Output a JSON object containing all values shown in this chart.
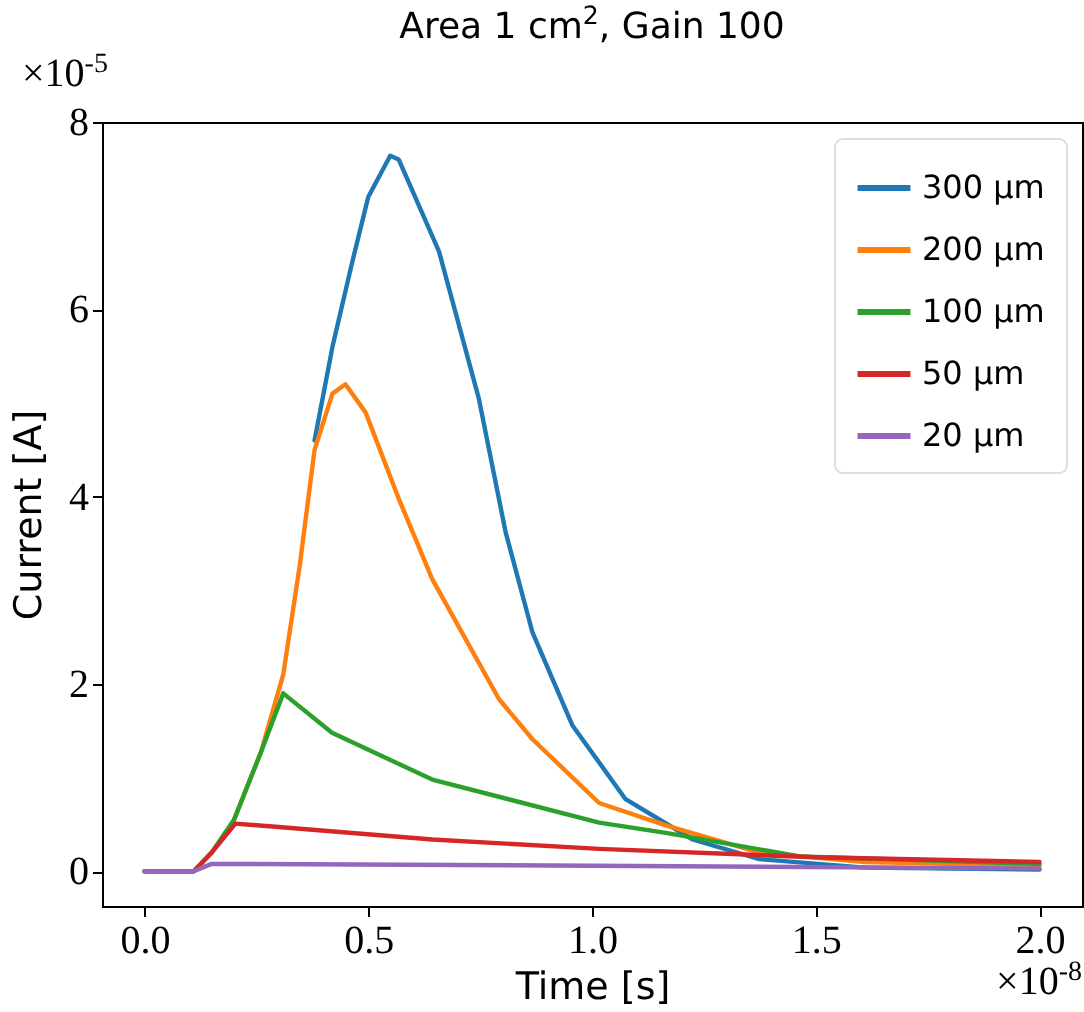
{
  "chart_data": {
    "type": "line",
    "title": "Area 1 cm$^{2}$, Gain 100",
    "xlabel": "Time [s]",
    "ylabel": "Current [A]",
    "annotations": [
      "×10$^{-5}$",
      "×10$^{-8}$"
    ],
    "xlim": [
      -0.095,
      2.095
    ],
    "ylim": [
      -0.37,
      8.0
    ],
    "xticks": [
      {
        "value": 0,
        "label": "0.0"
      },
      {
        "value": 0.5,
        "label": "0.5"
      },
      {
        "value": 1,
        "label": "1.0"
      },
      {
        "value": 1.5,
        "label": "1.5"
      },
      {
        "value": 2,
        "label": "2.0"
      }
    ],
    "yticks": [
      0,
      2,
      4,
      6,
      8
    ],
    "grid": false,
    "legend": "top right",
    "marker": "none",
    "line_style": "solid",
    "series": [
      {
        "name": "300 μm",
        "color": "#1f77b4",
        "x": [
          0.38,
          0.42,
          0.464,
          0.5,
          0.549,
          0.568,
          0.658,
          0.747,
          0.807,
          0.867,
          0.956,
          1.075,
          1.225,
          1.374,
          1.61,
          2.0
        ],
        "values": [
          4.6,
          5.6,
          6.5,
          7.2,
          7.64,
          7.6,
          6.62,
          5.05,
          3.62,
          2.55,
          1.56,
          0.77,
          0.34,
          0.13,
          0.04,
          0.02
        ]
      },
      {
        "name": "200 μm",
        "color": "#ff7f0e",
        "x": [
          0.2,
          0.26,
          0.31,
          0.347,
          0.38,
          0.42,
          0.449,
          0.494,
          0.568,
          0.643,
          0.792,
          0.867,
          1.016,
          1.165,
          1.374,
          1.61,
          2.0
        ],
        "values": [
          0.55,
          1.27,
          2.1,
          3.27,
          4.5,
          5.1,
          5.2,
          4.9,
          3.98,
          3.12,
          1.84,
          1.41,
          0.73,
          0.49,
          0.2,
          0.1,
          0.06
        ]
      },
      {
        "name": "100 μm",
        "color": "#2ca02c",
        "x": [
          0,
          0.11,
          0.15,
          0.2,
          0.26,
          0.31,
          0.419,
          0.643,
          1.016,
          1.165,
          1.464,
          2.0
        ],
        "values": [
          0,
          0,
          0.2,
          0.55,
          1.27,
          1.9,
          1.48,
          0.98,
          0.52,
          0.41,
          0.16,
          0.08
        ]
      },
      {
        "name": "50 μm",
        "color": "#d62728",
        "x": [
          0,
          0.11,
          0.15,
          0.203,
          0.643,
          1.016,
          1.5,
          2.0
        ],
        "values": [
          0,
          0,
          0.2,
          0.51,
          0.34,
          0.24,
          0.15,
          0.1
        ]
      },
      {
        "name": "20 μm",
        "color": "#9467bd",
        "x": [
          0,
          0.11,
          0.15,
          1.0,
          2.0
        ],
        "values": [
          0,
          0,
          0.08,
          0.06,
          0.03
        ]
      }
    ]
  }
}
